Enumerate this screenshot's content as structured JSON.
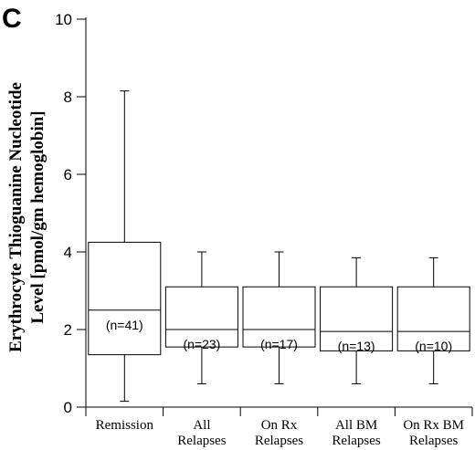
{
  "panel_label": "C",
  "chart_data": {
    "type": "box",
    "title": "",
    "ylabel_lines": [
      "Erythrocyte Thioguanine Nucleotide",
      "Level [pmol/gm hemoglobin]"
    ],
    "xlabel": "",
    "ylim": [
      0,
      10
    ],
    "yticks": [
      0,
      2,
      4,
      6,
      8,
      10
    ],
    "grid": false,
    "categories": [
      {
        "lines": [
          "Remission"
        ]
      },
      {
        "lines": [
          "All",
          "Relapses"
        ]
      },
      {
        "lines": [
          "On Rx",
          "Relapses"
        ]
      },
      {
        "lines": [
          "All BM",
          "Relapses"
        ]
      },
      {
        "lines": [
          "On Rx BM",
          "Relapses"
        ]
      }
    ],
    "boxes": [
      {
        "min": 0.15,
        "q1": 1.35,
        "median": 2.5,
        "q3": 4.25,
        "max": 8.15,
        "n_label": "(n=41)"
      },
      {
        "min": 0.6,
        "q1": 1.55,
        "median": 2.0,
        "q3": 3.1,
        "max": 4.0,
        "n_label": "(n=23)"
      },
      {
        "min": 0.6,
        "q1": 1.55,
        "median": 2.0,
        "q3": 3.1,
        "max": 4.0,
        "n_label": "(n=17)"
      },
      {
        "min": 0.6,
        "q1": 1.45,
        "median": 1.95,
        "q3": 3.1,
        "max": 3.85,
        "n_label": "(n=13)"
      },
      {
        "min": 0.6,
        "q1": 1.45,
        "median": 1.95,
        "q3": 3.1,
        "max": 3.85,
        "n_label": "(n=10)"
      }
    ]
  }
}
